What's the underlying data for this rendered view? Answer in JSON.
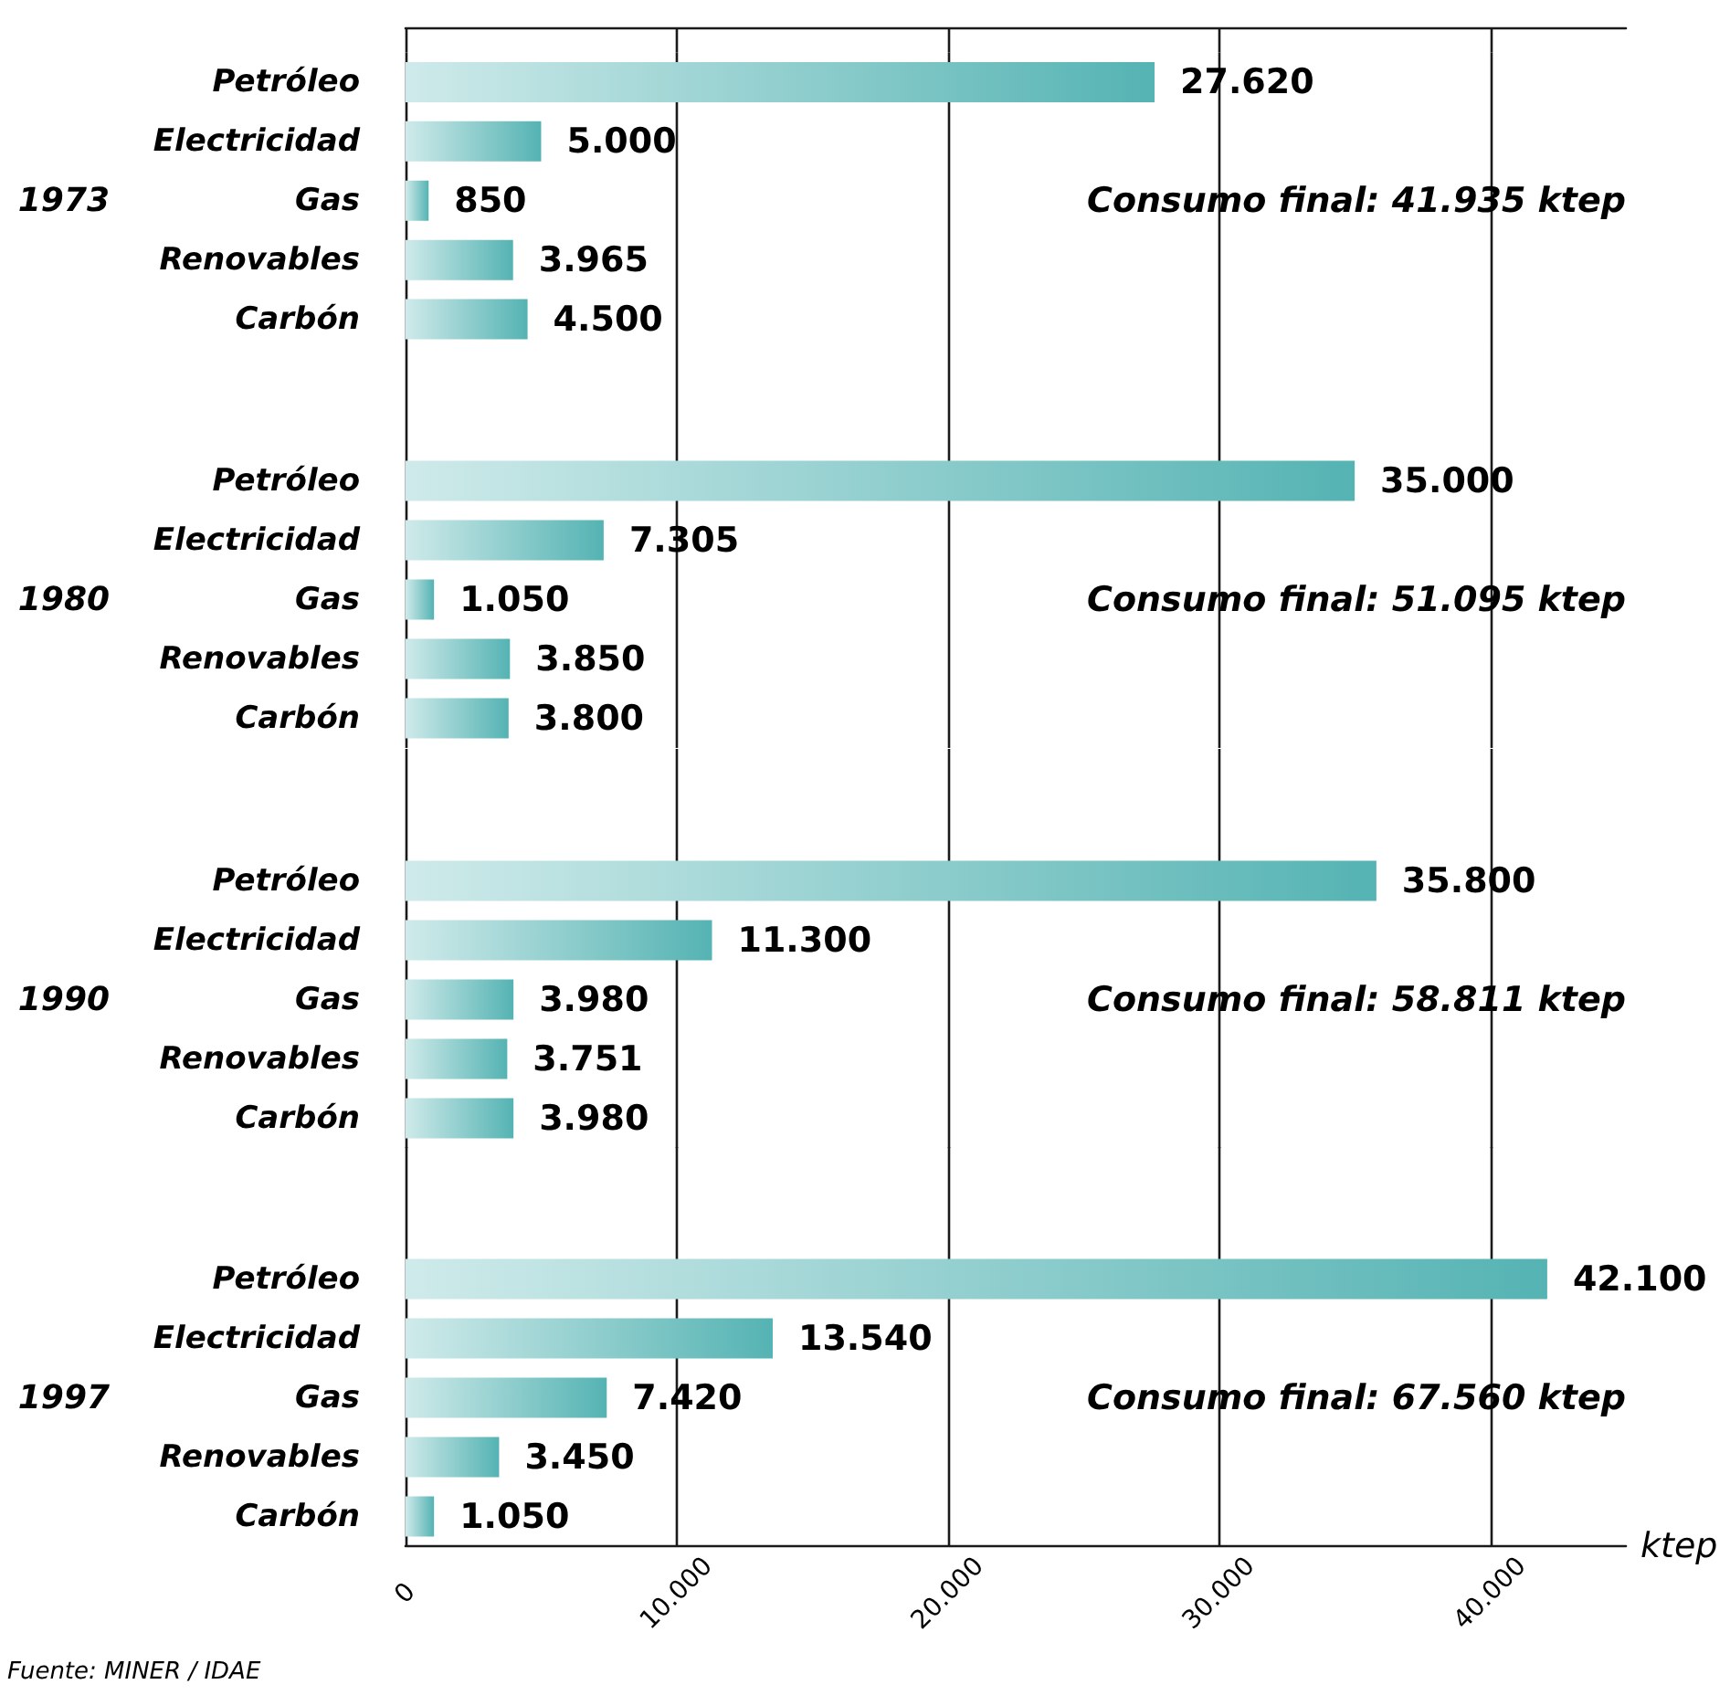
{
  "chart_data": [
    {
      "type": "bar",
      "orientation": "horizontal",
      "ylabel": "1973",
      "categories": [
        "Petróleo",
        "Electricidad",
        "Gas",
        "Renovables",
        "Carbón"
      ],
      "values": [
        27620,
        5000,
        850,
        3965,
        4500
      ],
      "value_labels": [
        "27.620",
        "5.000",
        "850",
        "3.965",
        "4.500"
      ],
      "color": "#55b3b3",
      "annotations": [
        "Consumo final: 41.935 ktep"
      ],
      "xlim": [
        0,
        45000
      ],
      "xticks": [
        {
          "value": 0,
          "label": null
        },
        {
          "value": 10000,
          "label": null
        },
        {
          "value": 20000,
          "label": null
        },
        {
          "value": 30000,
          "label": null
        },
        {
          "value": 40000,
          "label": null
        }
      ],
      "grid": "x",
      "tick_labels": "y"
    },
    {
      "type": "bar",
      "orientation": "horizontal",
      "ylabel": "1980",
      "categories": [
        "Petróleo",
        "Electricidad",
        "Gas",
        "Renovables",
        "Carbón"
      ],
      "values": [
        35000,
        7305,
        1050,
        3850,
        3800
      ],
      "value_labels": [
        "35.000",
        "7.305",
        "1.050",
        "3.850",
        "3.800"
      ],
      "color": "#55b3b3",
      "annotations": [
        "Consumo final: 51.095 ktep"
      ],
      "xticks": [
        {
          "value": 0,
          "label": null
        },
        {
          "value": 10000,
          "label": null
        },
        {
          "value": 20000,
          "label": null
        },
        {
          "value": 30000,
          "label": null
        },
        {
          "value": 40000,
          "label": null
        }
      ],
      "grid": "x",
      "tick_labels": "y"
    },
    {
      "type": "bar",
      "orientation": "horizontal",
      "ylabel": "1990",
      "categories": [
        "Petróleo",
        "Electricidad",
        "Gas",
        "Renovables",
        "Carbón"
      ],
      "values": [
        35800,
        11300,
        3980,
        3751,
        3980
      ],
      "value_labels": [
        "35.800",
        "11.300",
        "3.980",
        "3.751",
        "3.980"
      ],
      "color": "#55b3b3",
      "annotations": [
        "Consumo final: 58.811 ktep"
      ],
      "xticks": [
        {
          "value": 0,
          "label": null
        },
        {
          "value": 10000,
          "label": null
        },
        {
          "value": 20000,
          "label": null
        },
        {
          "value": 30000,
          "label": null
        },
        {
          "value": 40000,
          "label": null
        }
      ],
      "grid": "x",
      "tick_labels": "y"
    },
    {
      "type": "bar",
      "orientation": "horizontal",
      "ylabel": "1997",
      "xlabel": "ktep",
      "categories": [
        "Petróleo",
        "Electricidad",
        "Gas",
        "Renovables",
        "Carbón"
      ],
      "values": [
        42100,
        13540,
        7420,
        3450,
        1050
      ],
      "value_labels": [
        "42.100",
        "13.540",
        "7.420",
        "3.450",
        "1.050"
      ],
      "color": "#55b3b3",
      "annotations": [
        "Consumo final: 67.560 ktep",
        "Fuente: MINER / IDAE"
      ],
      "xlim": [
        0,
        45000
      ],
      "xticks": [
        0,
        {
          "value": 10000,
          "label": "10.000"
        },
        {
          "value": 20000,
          "label": "20.000"
        },
        {
          "value": 30000,
          "label": "30.000"
        },
        {
          "value": 40000,
          "label": "40.000"
        }
      ],
      "grid": "x"
    }
  ]
}
